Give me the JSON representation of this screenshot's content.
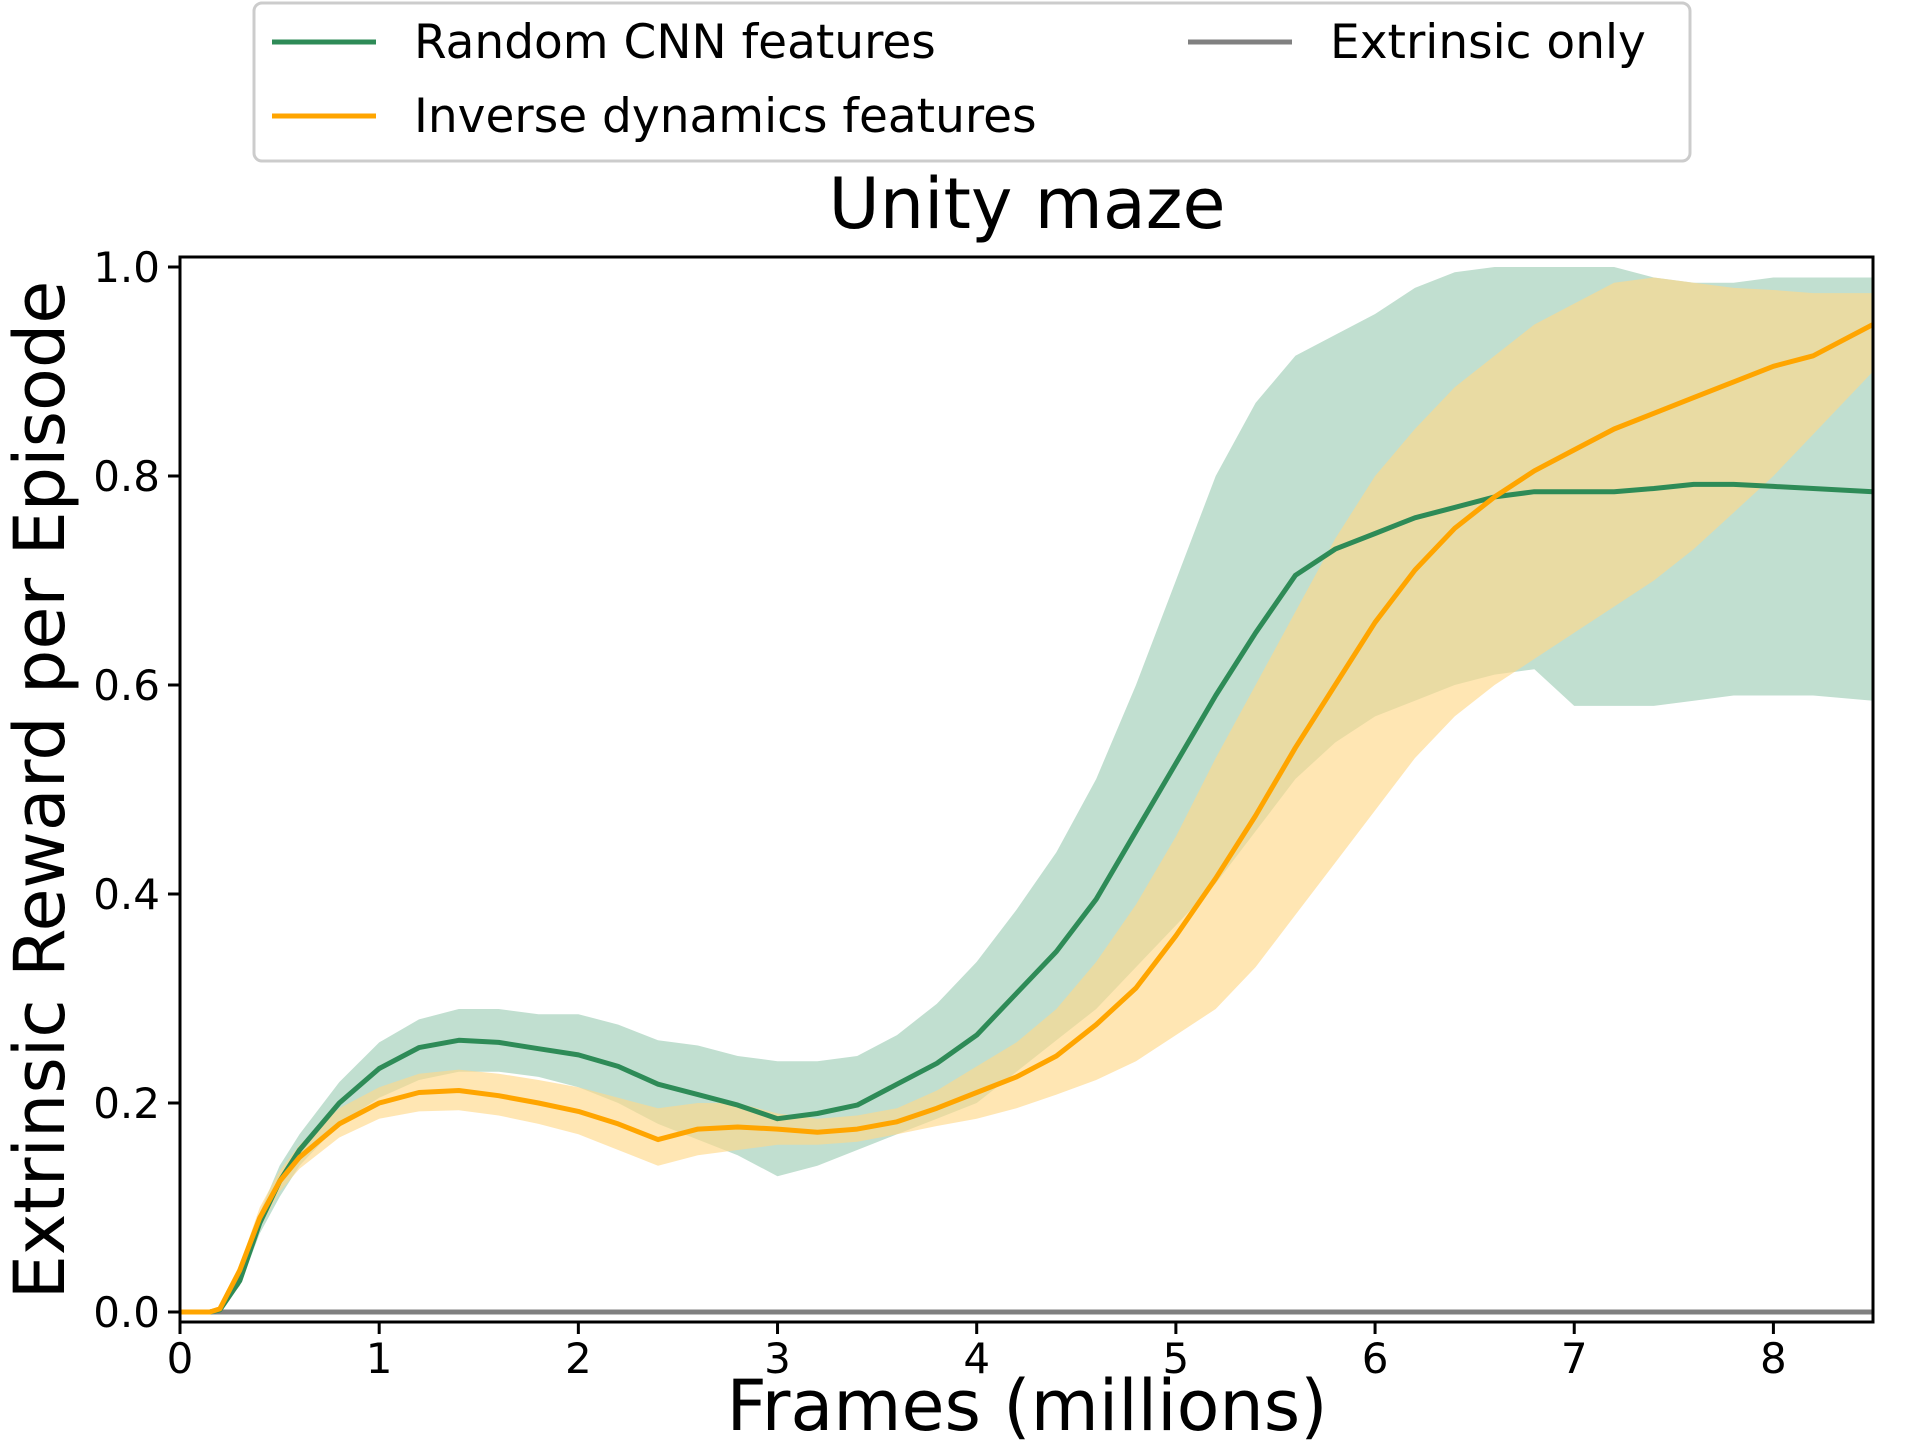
{
  "chart_data": {
    "type": "line",
    "title": "Unity maze",
    "xlabel": "Frames (millions)",
    "ylabel": "Extrinsic Reward per Episode",
    "xlim": [
      0,
      8.5
    ],
    "ylim": [
      0,
      1.0
    ],
    "xticks": [
      "0",
      "1",
      "2",
      "3",
      "4",
      "5",
      "6",
      "7",
      "8"
    ],
    "yticks": [
      "0.0",
      "0.2",
      "0.4",
      "0.6",
      "0.8",
      "1.0"
    ],
    "grid": false,
    "legend_position": "top",
    "series": [
      {
        "name": "Random CNN features",
        "color": "#2e8b57",
        "band_color": "#c1dfd0",
        "x": [
          0,
          0.15,
          0.2,
          0.3,
          0.4,
          0.5,
          0.6,
          0.8,
          1.0,
          1.2,
          1.4,
          1.6,
          1.8,
          2.0,
          2.2,
          2.4,
          2.6,
          2.8,
          3.0,
          3.2,
          3.4,
          3.6,
          3.8,
          4.0,
          4.2,
          4.4,
          4.6,
          4.8,
          5.0,
          5.2,
          5.4,
          5.6,
          5.8,
          6.0,
          6.2,
          6.4,
          6.6,
          6.8,
          7.0,
          7.2,
          7.4,
          7.6,
          7.8,
          8.0,
          8.2,
          8.5
        ],
        "y": [
          0,
          0,
          0.002,
          0.03,
          0.085,
          0.125,
          0.155,
          0.2,
          0.233,
          0.253,
          0.26,
          0.258,
          0.252,
          0.246,
          0.235,
          0.218,
          0.208,
          0.198,
          0.185,
          0.19,
          0.198,
          0.218,
          0.238,
          0.265,
          0.305,
          0.345,
          0.395,
          0.46,
          0.525,
          0.59,
          0.65,
          0.705,
          0.73,
          0.745,
          0.76,
          0.77,
          0.78,
          0.785,
          0.785,
          0.785,
          0.788,
          0.792,
          0.792,
          0.79,
          0.788,
          0.785
        ],
        "lower": [
          0,
          0,
          0.002,
          0.025,
          0.075,
          0.11,
          0.14,
          0.18,
          0.205,
          0.222,
          0.23,
          0.23,
          0.225,
          0.215,
          0.2,
          0.18,
          0.165,
          0.15,
          0.13,
          0.14,
          0.155,
          0.17,
          0.185,
          0.2,
          0.23,
          0.26,
          0.29,
          0.33,
          0.37,
          0.41,
          0.46,
          0.51,
          0.545,
          0.57,
          0.585,
          0.6,
          0.61,
          0.615,
          0.58,
          0.58,
          0.58,
          0.585,
          0.59,
          0.59,
          0.59,
          0.585
        ],
        "upper": [
          0,
          0,
          0.002,
          0.035,
          0.095,
          0.14,
          0.17,
          0.22,
          0.258,
          0.28,
          0.29,
          0.29,
          0.285,
          0.285,
          0.275,
          0.26,
          0.255,
          0.245,
          0.24,
          0.24,
          0.245,
          0.265,
          0.295,
          0.335,
          0.385,
          0.44,
          0.51,
          0.6,
          0.7,
          0.8,
          0.87,
          0.915,
          0.935,
          0.955,
          0.98,
          0.995,
          1.0,
          1.0,
          1.0,
          1.0,
          0.99,
          0.985,
          0.985,
          0.99,
          0.99,
          0.99
        ]
      },
      {
        "name": "Inverse dynamics features",
        "color": "#ffa500",
        "band_color": "#ffd98a",
        "x": [
          0,
          0.15,
          0.2,
          0.3,
          0.4,
          0.5,
          0.6,
          0.8,
          1.0,
          1.2,
          1.4,
          1.6,
          1.8,
          2.0,
          2.2,
          2.4,
          2.6,
          2.8,
          3.0,
          3.2,
          3.4,
          3.6,
          3.8,
          4.0,
          4.2,
          4.4,
          4.6,
          4.8,
          5.0,
          5.2,
          5.4,
          5.6,
          5.8,
          6.0,
          6.2,
          6.4,
          6.6,
          6.8,
          7.0,
          7.2,
          7.4,
          7.6,
          7.8,
          8.0,
          8.2,
          8.5
        ],
        "y": [
          0,
          0,
          0.003,
          0.04,
          0.09,
          0.125,
          0.148,
          0.18,
          0.2,
          0.21,
          0.212,
          0.207,
          0.2,
          0.192,
          0.18,
          0.165,
          0.175,
          0.177,
          0.175,
          0.172,
          0.175,
          0.182,
          0.195,
          0.21,
          0.225,
          0.245,
          0.275,
          0.31,
          0.36,
          0.415,
          0.475,
          0.54,
          0.6,
          0.66,
          0.71,
          0.75,
          0.78,
          0.805,
          0.825,
          0.845,
          0.86,
          0.875,
          0.89,
          0.905,
          0.915,
          0.945
        ],
        "lower": [
          0,
          0,
          0.003,
          0.035,
          0.08,
          0.115,
          0.137,
          0.167,
          0.185,
          0.192,
          0.193,
          0.188,
          0.18,
          0.17,
          0.155,
          0.14,
          0.15,
          0.155,
          0.16,
          0.16,
          0.163,
          0.17,
          0.178,
          0.185,
          0.195,
          0.208,
          0.222,
          0.24,
          0.265,
          0.29,
          0.33,
          0.38,
          0.43,
          0.48,
          0.53,
          0.57,
          0.6,
          0.625,
          0.65,
          0.675,
          0.7,
          0.73,
          0.765,
          0.8,
          0.84,
          0.9
        ],
        "upper": [
          0,
          0,
          0.003,
          0.045,
          0.1,
          0.135,
          0.16,
          0.195,
          0.215,
          0.228,
          0.232,
          0.228,
          0.222,
          0.215,
          0.205,
          0.195,
          0.2,
          0.2,
          0.19,
          0.185,
          0.188,
          0.195,
          0.212,
          0.235,
          0.258,
          0.29,
          0.335,
          0.39,
          0.455,
          0.53,
          0.6,
          0.67,
          0.74,
          0.8,
          0.845,
          0.885,
          0.915,
          0.945,
          0.965,
          0.985,
          0.99,
          0.985,
          0.98,
          0.978,
          0.975,
          0.975
        ]
      },
      {
        "name": "Extrinsic only",
        "color": "#808080",
        "x": [
          0,
          8.5
        ],
        "y": [
          0,
          0
        ]
      }
    ]
  }
}
